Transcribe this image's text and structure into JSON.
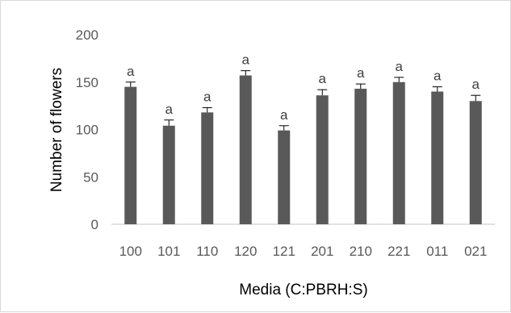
{
  "chart_data": {
    "type": "bar",
    "title": "",
    "xlabel": "Media (C:PBRH:S)",
    "ylabel": "Number of flowers",
    "categories": [
      "100",
      "101",
      "110",
      "120",
      "121",
      "201",
      "210",
      "221",
      "011",
      "021"
    ],
    "values": [
      145,
      104,
      118,
      157,
      99,
      136,
      143,
      150,
      140,
      130
    ],
    "error": [
      5,
      6,
      5,
      5,
      5,
      6,
      5,
      5,
      5,
      6
    ],
    "labels": [
      "a",
      "a",
      "a",
      "a",
      "a",
      "a",
      "a",
      "a",
      "a",
      "a"
    ],
    "ylim": [
      0,
      200
    ],
    "yticks": [
      0,
      50,
      100,
      150,
      200
    ],
    "grid": false,
    "legend": "none",
    "colors": {
      "bar": "#595959",
      "axis": "#d9d9d9"
    }
  }
}
